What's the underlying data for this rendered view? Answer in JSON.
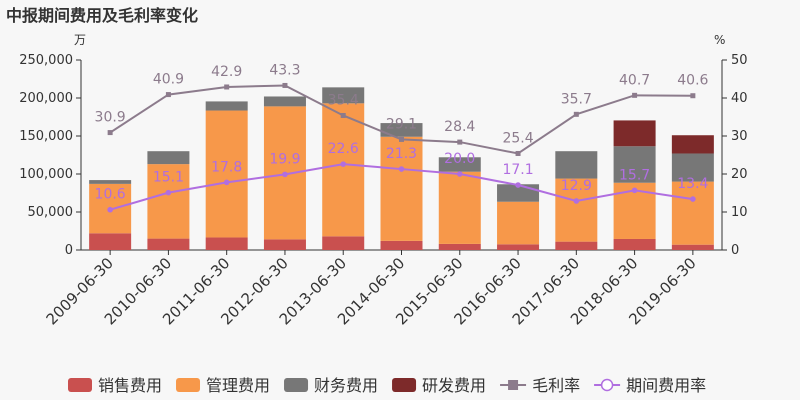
{
  "chart_data": {
    "type": "bar",
    "title": "中报期间费用及毛利率变化",
    "left_unit": "万",
    "right_unit": "%",
    "categories": [
      "2009-06-30",
      "2010-06-30",
      "2011-06-30",
      "2012-06-30",
      "2013-06-30",
      "2014-06-30",
      "2015-06-30",
      "2016-06-30",
      "2017-06-30",
      "2018-06-30",
      "2019-06-30"
    ],
    "stacked_series": [
      {
        "name": "销售费用",
        "color": "#c9504f",
        "values": [
          22000,
          15000,
          16500,
          14000,
          18000,
          12000,
          8000,
          7500,
          11000,
          14500,
          7000
        ]
      },
      {
        "name": "管理费用",
        "color": "#f7984a",
        "values": [
          65000,
          98000,
          167000,
          175000,
          175000,
          137000,
          95000,
          56000,
          83000,
          74000,
          83000
        ]
      },
      {
        "name": "财务费用",
        "color": "#777777",
        "values": [
          5000,
          17000,
          12000,
          13000,
          21000,
          18000,
          19000,
          23000,
          36000,
          48000,
          37000
        ]
      },
      {
        "name": "研发费用",
        "color": "#7d2a2a",
        "values": [
          0,
          0,
          0,
          0,
          0,
          0,
          0,
          0,
          0,
          34000,
          24000
        ]
      }
    ],
    "line_series": [
      {
        "name": "毛利率",
        "color": "#8c7b8c",
        "marker": "square",
        "values": [
          30.9,
          40.9,
          42.9,
          43.3,
          35.4,
          29.1,
          28.4,
          25.4,
          35.7,
          40.7,
          40.6
        ],
        "labels": [
          "30.9",
          "40.9",
          "42.9",
          "43.3",
          "35.4",
          "29.1",
          "28.4",
          "25.4",
          "35.7",
          "40.7",
          "40.6"
        ]
      },
      {
        "name": "期间费用率",
        "color": "#b06ee0",
        "marker": "circle",
        "values": [
          10.6,
          15.1,
          17.8,
          19.9,
          22.6,
          21.3,
          20.0,
          17.1,
          12.9,
          15.7,
          13.4
        ],
        "labels": [
          "10.6",
          "15.1",
          "17.8",
          "19.9",
          "22.6",
          "21.3",
          "20.0",
          "17.1",
          "12.9",
          "15.7",
          "13.4"
        ]
      }
    ],
    "y_left": {
      "min": 0,
      "max": 250000,
      "ticks": [
        "0",
        "50,000",
        "100,000",
        "150,000",
        "200,000",
        "250,000"
      ],
      "tick_values": [
        0,
        50000,
        100000,
        150000,
        200000,
        250000
      ]
    },
    "y_right": {
      "min": 0,
      "max": 50,
      "ticks": [
        "0",
        "10",
        "20",
        "30",
        "40",
        "50"
      ],
      "tick_values": [
        0,
        10,
        20,
        30,
        40,
        50
      ]
    },
    "grid": false,
    "legend_position": "bottom"
  }
}
